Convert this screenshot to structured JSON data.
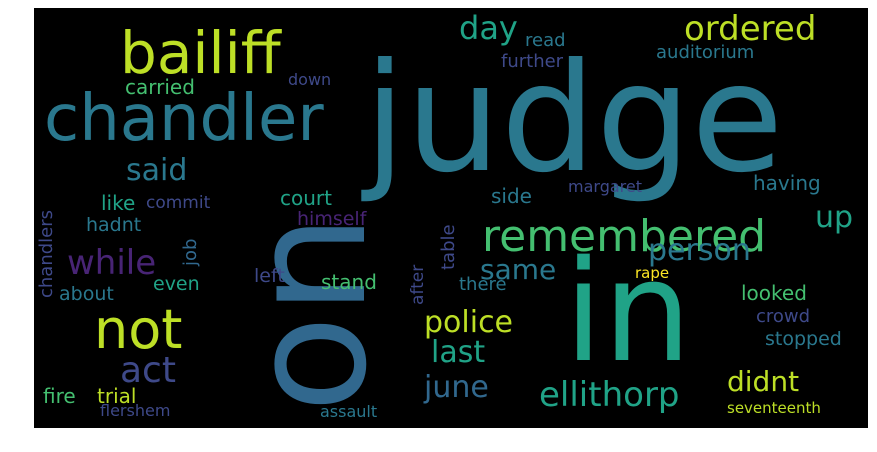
{
  "colors": {
    "background": "#000000",
    "teal": "#2a788e",
    "teal_green": "#20a387",
    "green": "#44bf70",
    "lime": "#bddf26",
    "purple": "#482475",
    "blue_purple": "#3e4989",
    "slate": "#31688e",
    "yellow": "#fde725"
  },
  "words": {
    "judge": "judge",
    "on": "on",
    "in": "in",
    "bailiff": "bailiff",
    "chandler": "chandler",
    "remembered": "remembered",
    "not": "not",
    "ordered": "ordered",
    "ellithorp": "ellithorp",
    "act": "act",
    "while": "while",
    "person": "person",
    "police": "police",
    "said": "said",
    "june": "june",
    "last": "last",
    "didnt": "didnt",
    "same": "same",
    "up": "up",
    "day": "day",
    "read": "read",
    "auditorium": "auditorium",
    "carried": "carried",
    "down": "down",
    "further": "further",
    "like": "like",
    "commit": "commit",
    "court": "court",
    "side": "side",
    "margaret": "margaret",
    "having": "having",
    "hadnt": "hadnt",
    "himself": "himself",
    "job": "job",
    "chandlers": "chandlers",
    "table": "table",
    "after": "after",
    "about": "about",
    "even": "even",
    "left": "left",
    "stand": "stand",
    "there": "there",
    "rape": "rape",
    "looked": "looked",
    "crowd": "crowd",
    "stopped": "stopped",
    "fire": "fire",
    "trial": "trial",
    "flershem": "flershem",
    "assault": "assault",
    "seventeenth": "seventeenth"
  }
}
